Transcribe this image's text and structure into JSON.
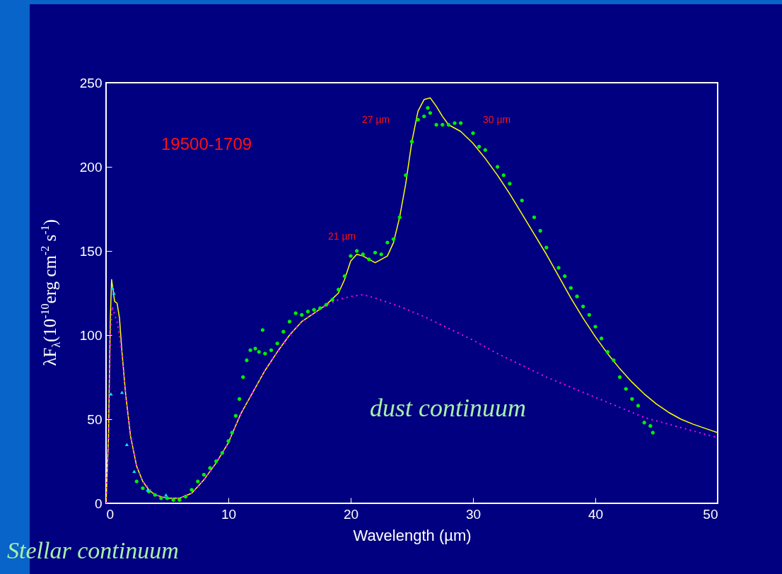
{
  "chart_data": {
    "type": "line",
    "xlabel": "Wavelength (µm)",
    "ylabel": "λF$_{λ}$(10$^{-10}$erg cm$^{-2}$ s$^{-1}$)",
    "xlim": [
      0,
      50
    ],
    "xticks": [
      0,
      10,
      20,
      30,
      40,
      50
    ],
    "ylim": [
      0,
      250
    ],
    "yticks": [
      0,
      50,
      100,
      150,
      200,
      250
    ],
    "annotations": [
      "19500-1709",
      "dust continuum",
      "Stellar continuum",
      "21 µm",
      "27 µm",
      "30 µm"
    ],
    "series": [
      {
        "type": "line",
        "color": "#ffff00",
        "line_style": "solid",
        "x": [
          0,
          0.2,
          0.35,
          0.45,
          0.55,
          0.7,
          0.9,
          1.1,
          1.3,
          1.6,
          2,
          2.5,
          3,
          3.5,
          4,
          5,
          6,
          7,
          8,
          9,
          10,
          11,
          12,
          13,
          14,
          15,
          16,
          17,
          18,
          19,
          19.5,
          20,
          20.5,
          21,
          22,
          23,
          23.5,
          24,
          24.5,
          25,
          25.5,
          26,
          26.5,
          27,
          27.5,
          28,
          29,
          30,
          31,
          32,
          33,
          34,
          35,
          36,
          37,
          38,
          39,
          40,
          41,
          42,
          43,
          44,
          45,
          46,
          47,
          48,
          49,
          50
        ],
        "values": [
          0,
          40,
          110,
          133,
          128,
          120,
          119,
          110,
          90,
          65,
          40,
          22,
          13,
          8,
          5,
          3,
          3,
          6,
          14,
          24,
          36,
          53,
          66,
          79,
          90,
          100,
          108,
          113,
          118,
          125,
          133,
          144,
          148,
          147,
          143,
          147,
          155,
          170,
          190,
          215,
          233,
          240,
          241,
          236,
          230,
          225,
          221,
          214,
          205,
          195,
          184,
          172,
          160,
          148,
          135,
          122,
          110,
          99,
          89,
          80,
          72,
          65,
          59,
          54,
          50,
          47,
          44.5,
          42
        ]
      },
      {
        "type": "line",
        "color": "#ff00ff",
        "line_style": "dotted",
        "x": [
          0,
          0.2,
          0.35,
          0.5,
          0.7,
          0.9,
          1.1,
          1.3,
          1.6,
          2,
          2.5,
          3,
          4,
          5,
          6,
          7,
          8,
          9,
          10,
          11,
          12,
          13,
          14,
          15,
          16,
          17,
          18,
          19,
          20,
          21,
          22,
          24,
          26,
          28,
          30,
          32,
          34,
          36,
          38,
          40,
          42,
          44,
          46,
          48,
          50
        ],
        "values": [
          0,
          40,
          100,
          117,
          112,
          108,
          100,
          88,
          65,
          40,
          22,
          13,
          5,
          3,
          3,
          6,
          14,
          24,
          36,
          53,
          66,
          79,
          90,
          100,
          108,
          113,
          118,
          121,
          123,
          124,
          122,
          117,
          111,
          104,
          97,
          89,
          82,
          75,
          69,
          63,
          57,
          51,
          47,
          43,
          39
        ]
      },
      {
        "type": "scatter",
        "color": "#00ee00",
        "marker": "circle",
        "x": [
          2.5,
          3,
          3.5,
          4,
          4.5,
          5,
          5.5,
          6,
          6.5,
          7,
          7.5,
          8,
          8.5,
          9,
          9.5,
          10,
          10.3,
          10.6,
          10.9,
          11.2,
          11.5,
          11.8,
          12.2,
          12.5,
          12.8,
          13,
          13.5,
          14,
          14.5,
          15,
          15.5,
          16,
          16.5,
          17,
          17.5,
          18,
          18.5,
          19,
          19.5,
          20,
          20.5,
          21,
          21.5,
          22,
          22.5,
          23,
          23.5,
          24,
          24.5,
          25,
          25.5,
          26,
          26.3,
          26.5,
          27,
          27.5,
          28,
          28.5,
          29,
          30,
          30.5,
          31,
          32,
          32.5,
          33,
          34,
          35,
          35.5,
          36,
          37,
          37.5,
          38,
          38.5,
          39,
          39.5,
          40,
          40.5,
          41,
          41.5,
          42,
          42.5,
          43,
          43.5,
          44,
          44.5,
          44.7
        ],
        "values": [
          13,
          9,
          7,
          5,
          3,
          3,
          2,
          2,
          4,
          8,
          13,
          17,
          21,
          25,
          30,
          37,
          42,
          52,
          62,
          75,
          85,
          91,
          92,
          90,
          103,
          89,
          91,
          95,
          102,
          108,
          113,
          112,
          114,
          115,
          116,
          118,
          121,
          127,
          135,
          147,
          150,
          148,
          145,
          149,
          148,
          155,
          157,
          170,
          195,
          215,
          228,
          230,
          235,
          232,
          225,
          225,
          225,
          226,
          226,
          220,
          212,
          210,
          200,
          195,
          190,
          180,
          170,
          162,
          152,
          140,
          135,
          128,
          123,
          117,
          112,
          105,
          98,
          90,
          85,
          75,
          68,
          62,
          58,
          48,
          46,
          42
        ]
      },
      {
        "type": "scatter",
        "color": "#00e5ee",
        "marker": "triangle",
        "x": [
          0.4,
          0.52,
          0.64,
          1.3,
          1.7,
          2.3,
          3.4,
          4.9
        ],
        "values": [
          65,
          128,
          125,
          66,
          35,
          19,
          8,
          5
        ]
      }
    ]
  }
}
